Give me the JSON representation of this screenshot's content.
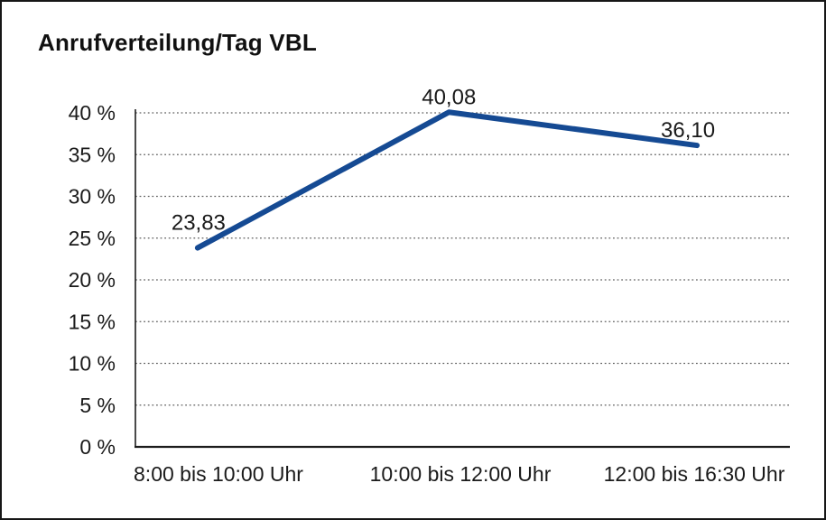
{
  "colors": {
    "line": "#154a93",
    "grid": "#5f5f5f",
    "axis": "#1c1c1c",
    "text": "#1a1a1a",
    "border": "#161616",
    "background": "#ffffff"
  },
  "chart_data": {
    "type": "line",
    "title": "Anrufverteilung/Tag VBL",
    "categories": [
      "8:00 bis 10:00 Uhr",
      "10:00 bis 12:00 Uhr",
      "12:00 bis 16:30 Uhr"
    ],
    "series": [
      {
        "name": "Anrufverteilung",
        "values": [
          23.83,
          40.08,
          36.1
        ]
      }
    ],
    "point_labels": [
      "23,83",
      "40,08",
      "36,10"
    ],
    "xlabel": "",
    "ylabel": "",
    "ylim": [
      0,
      40
    ],
    "ytick_step": 5,
    "ytick_labels": [
      "0 %",
      "5 %",
      "10 %",
      "15 %",
      "20 %",
      "25 %",
      "30 %",
      "35 %",
      "40 %"
    ],
    "ytick_suffix": "%",
    "grid": "horizontal-dotted",
    "legend": "none",
    "markers": "none"
  }
}
